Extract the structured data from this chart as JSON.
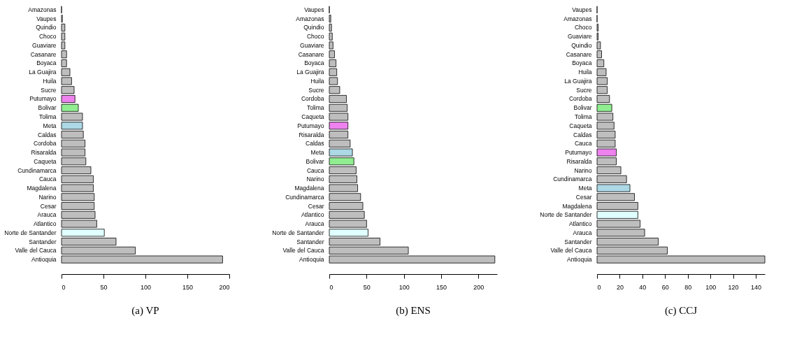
{
  "chart_data": [
    {
      "type": "bar",
      "orientation": "horizontal",
      "title": "(a)  VP",
      "categories": [
        "Amazonas",
        "Vaupes",
        "Quindio",
        "Choco",
        "Guaviare",
        "Casanare",
        "Boyaca",
        "La Guajira",
        "Huila",
        "Sucre",
        "Putumayo",
        "Bolivar",
        "Tolima",
        "Meta",
        "Caldas",
        "Cordoba",
        "Risaralda",
        "Caqueta",
        "Cundinamarca",
        "Cauca",
        "Magdalena",
        "Narino",
        "Cesar",
        "Arauca",
        "Atlantico",
        "Norte de Santander",
        "Santander",
        "Valle del Cauca",
        "Antioquia"
      ],
      "values": [
        0,
        1,
        4,
        4,
        4,
        6,
        6,
        10,
        12,
        15,
        16,
        20,
        25,
        25,
        26,
        28,
        28,
        29,
        35,
        38,
        38,
        39,
        39,
        40,
        42,
        51,
        65,
        88,
        192
      ],
      "colors": [
        "#000000",
        "#bebebe",
        "#bebebe",
        "#bebebe",
        "#bebebe",
        "#bebebe",
        "#bebebe",
        "#bebebe",
        "#bebebe",
        "#bebebe",
        "#ee82ee",
        "#90ee90",
        "#bebebe",
        "#add8e6",
        "#bebebe",
        "#bebebe",
        "#bebebe",
        "#bebebe",
        "#bebebe",
        "#bebebe",
        "#bebebe",
        "#bebebe",
        "#bebebe",
        "#bebebe",
        "#bebebe",
        "#e0ffff",
        "#bebebe",
        "#bebebe",
        "#bebebe"
      ],
      "xlim": [
        0,
        200
      ],
      "xticks": [
        0,
        50,
        100,
        150,
        200
      ],
      "grid": false
    },
    {
      "type": "bar",
      "orientation": "horizontal",
      "title": "(b)  ENS",
      "categories": [
        "Vaupes",
        "Amazonas",
        "Quindio",
        "Choco",
        "Guaviare",
        "Casanare",
        "Boyaca",
        "La Guajira",
        "Huila",
        "Sucre",
        "Cordoba",
        "Tolima",
        "Caqueta",
        "Putumayo",
        "Risaralda",
        "Caldas",
        "Meta",
        "Bolivar",
        "Cauca",
        "Narino",
        "Magdalena",
        "Cundinamarca",
        "Cesar",
        "Atlantico",
        "Arauca",
        "Norte de Santander",
        "Santander",
        "Valle del Cauca",
        "Antioquia"
      ],
      "values": [
        0,
        2,
        3,
        4,
        5,
        7,
        9,
        10,
        11,
        14,
        23,
        24,
        25,
        25,
        25,
        28,
        31,
        33,
        36,
        37,
        38,
        42,
        45,
        47,
        50,
        52,
        68,
        106,
        222
      ],
      "colors": [
        "#000000",
        "#bebebe",
        "#bebebe",
        "#bebebe",
        "#bebebe",
        "#bebebe",
        "#bebebe",
        "#bebebe",
        "#bebebe",
        "#bebebe",
        "#bebebe",
        "#bebebe",
        "#bebebe",
        "#ee82ee",
        "#bebebe",
        "#bebebe",
        "#add8e6",
        "#90ee90",
        "#bebebe",
        "#bebebe",
        "#bebebe",
        "#bebebe",
        "#bebebe",
        "#bebebe",
        "#bebebe",
        "#e0ffff",
        "#bebebe",
        "#bebebe",
        "#bebebe"
      ],
      "xlim": [
        0,
        225
      ],
      "xticks": [
        0,
        50,
        100,
        150,
        200
      ],
      "grid": false
    },
    {
      "type": "bar",
      "orientation": "horizontal",
      "title": "(c)  CCJ",
      "categories": [
        "Vaupes",
        "Amazonas",
        "Choco",
        "Guaviare",
        "Quindio",
        "Casanare",
        "Boyaca",
        "Huila",
        "La Guajira",
        "Sucre",
        "Cordoba",
        "Bolivar",
        "Tolima",
        "Caqueta",
        "Caldas",
        "Cauca",
        "Putumayo",
        "Risaralda",
        "Narino",
        "Cundinamarca",
        "Meta",
        "Cesar",
        "Magdalena",
        "Norte de Santander",
        "Atlantico",
        "Arauca",
        "Santander",
        "Valle del Cauca",
        "Antioquia"
      ],
      "values": [
        0,
        0,
        1,
        1,
        3,
        4,
        6,
        8,
        9,
        9,
        11,
        13,
        14,
        15,
        16,
        16,
        17,
        17,
        21,
        26,
        29,
        33,
        36,
        36,
        38,
        42,
        54,
        62,
        148
      ],
      "colors": [
        "#000000",
        "#000000",
        "#bebebe",
        "#bebebe",
        "#bebebe",
        "#bebebe",
        "#bebebe",
        "#bebebe",
        "#bebebe",
        "#bebebe",
        "#bebebe",
        "#90ee90",
        "#bebebe",
        "#bebebe",
        "#bebebe",
        "#bebebe",
        "#ee82ee",
        "#bebebe",
        "#bebebe",
        "#bebebe",
        "#add8e6",
        "#bebebe",
        "#bebebe",
        "#e0ffff",
        "#bebebe",
        "#bebebe",
        "#bebebe",
        "#bebebe",
        "#bebebe"
      ],
      "xlim": [
        0,
        148
      ],
      "xticks": [
        0,
        20,
        40,
        60,
        80,
        100,
        120,
        140
      ],
      "grid": false
    }
  ]
}
